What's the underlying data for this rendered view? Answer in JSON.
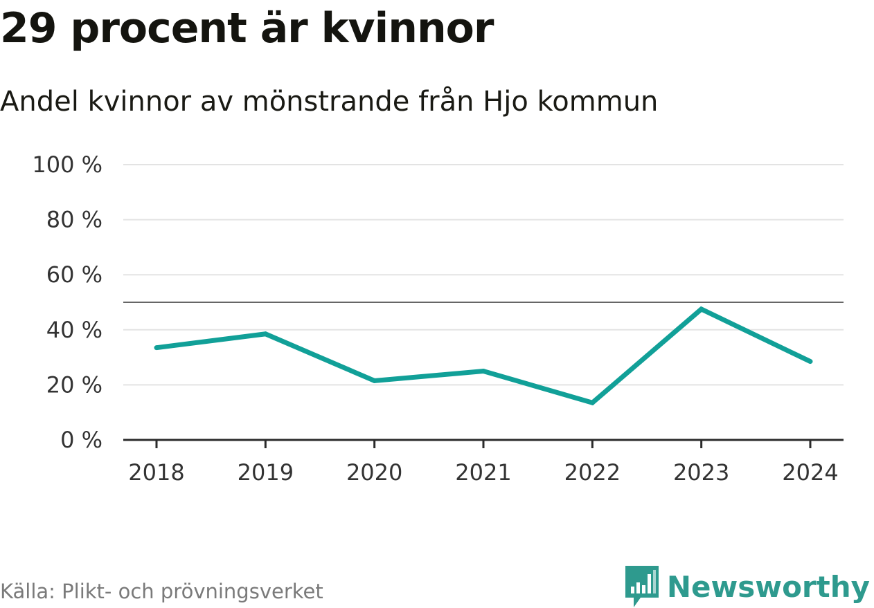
{
  "colors": {
    "series": "#11a098",
    "grid": "#e3e3e3",
    "axis": "#2b2b2b",
    "reference": "#666666",
    "brand": "#2e9a8e"
  },
  "chart_data": {
    "type": "line",
    "title": "29 procent är kvinnor",
    "subtitle": "Andel kvinnor av mönstrande från Hjo kommun",
    "categories": [
      "2018",
      "2019",
      "2020",
      "2021",
      "2022",
      "2023",
      "2024"
    ],
    "series": [
      {
        "name": "Andel kvinnor",
        "values": [
          33.5,
          38.5,
          21.5,
          25,
          13.5,
          47.5,
          28.5
        ]
      }
    ],
    "reference_line": 50,
    "ylim": [
      0,
      100
    ],
    "y_ticks": [
      {
        "value": 0,
        "label": "0 %"
      },
      {
        "value": 20,
        "label": "20 %"
      },
      {
        "value": 40,
        "label": "40 %"
      },
      {
        "value": 60,
        "label": "60 %"
      },
      {
        "value": 80,
        "label": "80 %"
      },
      {
        "value": 100,
        "label": "100 %"
      }
    ],
    "xlabel": "",
    "ylabel": "",
    "grid": true,
    "legend": "none"
  },
  "footer": {
    "source": "Källa: Plikt- och prövningsverket",
    "brand": "Newsworthy",
    "brand_icon": "newsworthy-logo-icon"
  }
}
